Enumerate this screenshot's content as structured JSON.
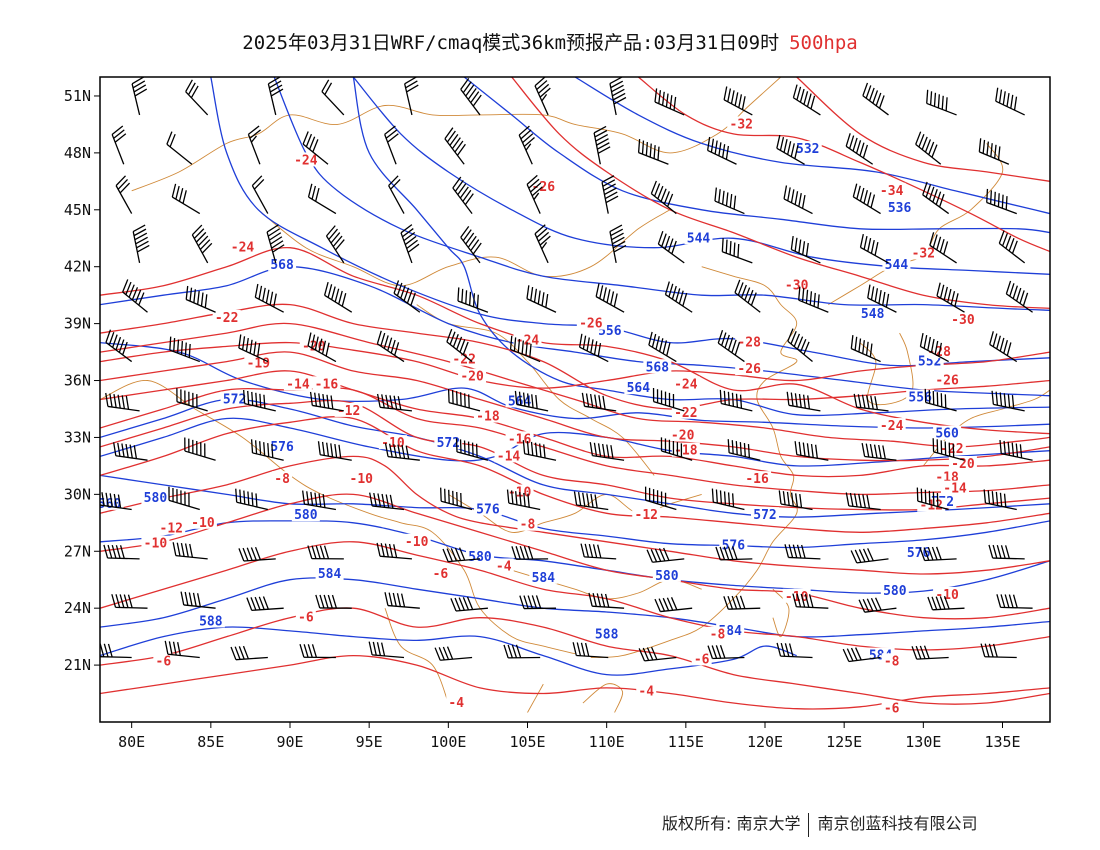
{
  "title": {
    "main": "2025年03月31日WRF/cmaq模式36km预报产品:03月31日09时",
    "level": "500hpa",
    "level_color": "#e03030"
  },
  "map": {
    "lon_range": [
      78,
      138
    ],
    "lat_range": [
      18,
      52
    ],
    "x_ticks": [
      "80E",
      "85E",
      "90E",
      "95E",
      "100E",
      "105E",
      "110E",
      "115E",
      "120E",
      "125E",
      "130E",
      "135E"
    ],
    "y_ticks": [
      "51N",
      "48N",
      "45N",
      "42N",
      "39N",
      "36N",
      "33N",
      "30N",
      "27N",
      "24N",
      "21N"
    ],
    "height_color": "#1f3fd8",
    "temp_color": "#e03030",
    "border_color": "#d08a3a",
    "barb_color": "#000000",
    "height_labels": [
      "532",
      "536",
      "544",
      "548",
      "552",
      "556",
      "560",
      "564",
      "568",
      "572",
      "576",
      "580",
      "584",
      "588"
    ],
    "temp_labels": [
      "-4",
      "-6",
      "-8",
      "-10",
      "-12",
      "-14",
      "-16",
      "-18",
      "-20",
      "-22",
      "-24",
      "-26",
      "-28",
      "-30",
      "-32",
      "-34"
    ]
  },
  "footer": {
    "copyright": "版权所有: 南京大学",
    "company": "南京创蓝科技有限公司"
  }
}
